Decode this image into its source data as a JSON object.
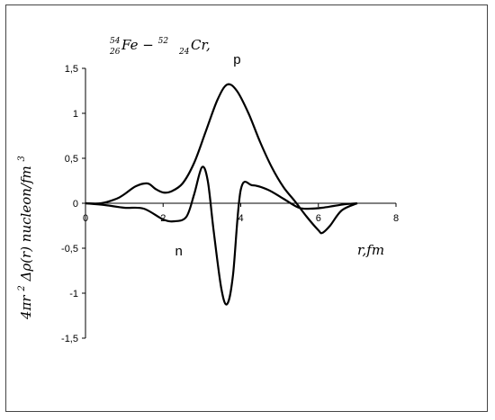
{
  "chart_data": {
    "type": "line",
    "title": "54 26Fe − 52 24Cr,",
    "title_parts": {
      "a_mass": "54",
      "a_z": "26",
      "a_sym": "Fe",
      "sep": " − ",
      "b_mass": "52",
      "b_z": "24",
      "b_sym": "Cr,"
    },
    "xlabel": "r,fm",
    "ylabel": "4πr²Δρ(r)  nucleon/fm³",
    "ylabel_parts": {
      "base": "4πr",
      "sup1": "2",
      "mid": "Δρ(r)  nucleon/fm",
      "sup2": "3"
    },
    "xlim": [
      0,
      8
    ],
    "ylim": [
      -1.5,
      1.5
    ],
    "x_ticks": [
      "0",
      "2",
      "4",
      "6",
      "8"
    ],
    "y_ticks": [
      "1,5",
      "1",
      "0,5",
      "0",
      "-0,5",
      "-1",
      "-1,5"
    ],
    "series": [
      {
        "name": "p",
        "x": [
          0,
          0.4,
          0.8,
          1.0,
          1.3,
          1.6,
          1.8,
          2.0,
          2.2,
          2.5,
          2.8,
          3.1,
          3.4,
          3.65,
          3.9,
          4.2,
          4.5,
          4.8,
          5.1,
          5.4,
          5.7,
          6.0,
          6.1,
          6.3,
          6.6,
          7.0
        ],
        "y": [
          0,
          0.0,
          0.05,
          0.1,
          0.19,
          0.22,
          0.16,
          0.12,
          0.13,
          0.22,
          0.45,
          0.8,
          1.15,
          1.32,
          1.25,
          1.0,
          0.68,
          0.4,
          0.18,
          0.02,
          -0.15,
          -0.3,
          -0.33,
          -0.25,
          -0.08,
          0
        ]
      },
      {
        "name": "n",
        "x": [
          0,
          0.5,
          1.0,
          1.5,
          2.0,
          2.3,
          2.6,
          2.8,
          3.0,
          3.15,
          3.3,
          3.5,
          3.65,
          3.8,
          4.0,
          4.3,
          4.7,
          5.1,
          5.5,
          5.8,
          6.1,
          6.4,
          6.7,
          7.0
        ],
        "y": [
          0,
          -0.02,
          -0.05,
          -0.06,
          -0.18,
          -0.2,
          -0.15,
          0.1,
          0.4,
          0.25,
          -0.3,
          -0.95,
          -1.12,
          -0.8,
          0.15,
          0.2,
          0.15,
          0.05,
          -0.05,
          -0.06,
          -0.05,
          -0.03,
          -0.01,
          0
        ]
      }
    ],
    "series_label_positions": {
      "p": "above peak near r=3.9",
      "n": "below curve near r=2.4"
    },
    "grid": false,
    "legend": "none"
  },
  "colors": {
    "line": "#000000",
    "axis": "#000000",
    "frame": "#444444"
  }
}
